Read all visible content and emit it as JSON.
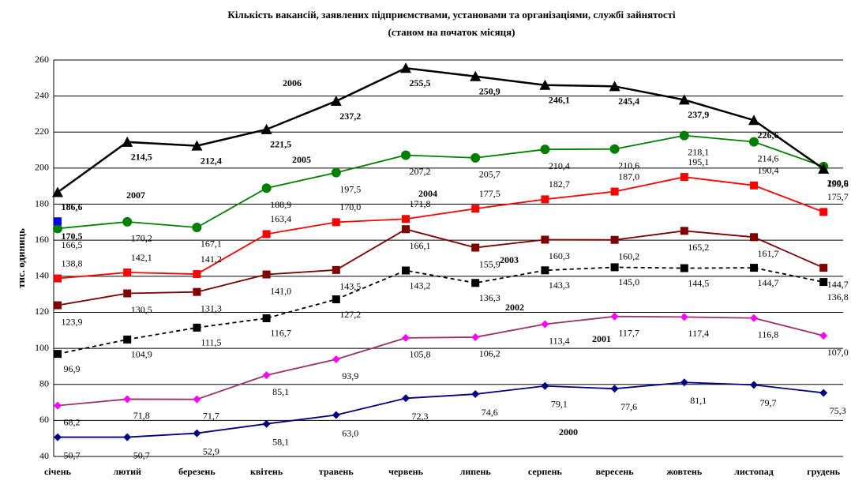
{
  "chart_data": {
    "type": "line",
    "title": "Кількість вакансій, заявлених підприємствами, установами та організаціями, службі зайнятості",
    "subtitle": "(станом на початок місяця)",
    "y_label": "тис. одиниць",
    "categories": [
      "січень",
      "лютий",
      "березень",
      "квітень",
      "травень",
      "червень",
      "липень",
      "серпень",
      "вересень",
      "жовтень",
      "листопад",
      "грудень"
    ],
    "ylim": [
      40,
      260
    ],
    "yticks": [
      40,
      60,
      80,
      100,
      120,
      140,
      160,
      180,
      200,
      220,
      240,
      260
    ],
    "grid": true,
    "series": [
      {
        "name": "2000",
        "color": "#000080",
        "marker": "diamond",
        "marker_color": "#000080",
        "dashed": false,
        "values": [
          50.7,
          50.7,
          52.9,
          58.1,
          63.0,
          72.3,
          74.6,
          79.1,
          77.6,
          81.1,
          79.7,
          75.3
        ],
        "value_labels": [
          "50,7",
          "50,7",
          "52,9",
          "58,1",
          "63,0",
          "72,3",
          "74,6",
          "79,1",
          "77,6",
          "81,1",
          "79,7",
          "75,3"
        ]
      },
      {
        "name": "2001",
        "color": "#993366",
        "marker": "diamond",
        "marker_color": "#ff00ff",
        "dashed": false,
        "values": [
          68.2,
          71.8,
          71.7,
          85.1,
          93.9,
          105.8,
          106.2,
          113.4,
          117.7,
          117.4,
          116.8,
          107.0
        ],
        "value_labels": [
          "68,2",
          "71,8",
          "71,7",
          "85,1",
          "93,9",
          "105,8",
          "106,2",
          "113,4",
          "117,7",
          "117,4",
          "116,8",
          "107,0"
        ]
      },
      {
        "name": "2002",
        "color": "#000000",
        "marker": "square",
        "marker_color": "#000000",
        "dashed": true,
        "values": [
          96.9,
          104.9,
          111.5,
          116.7,
          127.2,
          143.2,
          136.3,
          143.3,
          145.0,
          144.5,
          144.7,
          136.8
        ],
        "value_labels": [
          "96,9",
          "104,9",
          "111,5",
          "116,7",
          "127,2",
          "143,2",
          "136,3",
          "143,3",
          "145,0",
          "144,5",
          "144,7",
          "136,8"
        ]
      },
      {
        "name": "2003",
        "color": "#800000",
        "marker": "square",
        "marker_color": "#800000",
        "dashed": false,
        "values": [
          123.9,
          130.5,
          131.3,
          141.0,
          143.5,
          166.1,
          155.9,
          160.3,
          160.2,
          165.2,
          161.7,
          144.7
        ],
        "value_labels": [
          "123,9",
          "130,5",
          "131,3",
          "141,0",
          "143,5",
          "166,1",
          "155,9",
          "160,3",
          "160,2",
          "165,2",
          "161,7",
          "144,7"
        ]
      },
      {
        "name": "2004",
        "color": "#ff0000",
        "marker": "square",
        "marker_color": "#ff0000",
        "dashed": false,
        "values": [
          138.8,
          142.1,
          141.2,
          163.4,
          170.0,
          171.8,
          177.5,
          182.7,
          187.0,
          195.1,
          190.4,
          175.7
        ],
        "value_labels": [
          "138,8",
          "142,1",
          "141,2",
          "163,4",
          "170,0",
          "171,8",
          "177,5",
          "182,7",
          "187,0",
          "195,1",
          "190,4",
          "175,7"
        ]
      },
      {
        "name": "2005",
        "color": "#008000",
        "marker": "circle",
        "marker_color": "#008000",
        "dashed": false,
        "values": [
          166.5,
          170.2,
          167.1,
          188.9,
          197.5,
          207.2,
          205.7,
          210.4,
          210.6,
          218.1,
          214.6,
          200.9
        ],
        "value_labels": [
          "166,5",
          "170,2",
          "167,1",
          "188,9",
          "197,5",
          "207,2",
          "205,7",
          "210,4",
          "210,6",
          "218,1",
          "214,6",
          "200,9"
        ]
      },
      {
        "name": "2006",
        "color": "#000000",
        "marker": "triangle",
        "marker_color": "#000000",
        "dashed": false,
        "values": [
          186.6,
          214.5,
          212.4,
          221.5,
          237.2,
          255.5,
          250.9,
          246.1,
          245.4,
          237.9,
          226.6,
          199.6
        ],
        "value_labels": [
          "186,6",
          "214,5",
          "212,4",
          "221,5",
          "237,2",
          "255,5",
          "250,9",
          "246,1",
          "245,4",
          "237,9",
          "226,6",
          "199,6"
        ]
      },
      {
        "name": "2007",
        "color": "#0000ff",
        "marker": "square",
        "marker_color": "#0000ff",
        "dashed": false,
        "values": [
          170.5,
          null,
          null,
          null,
          null,
          null,
          null,
          null,
          null,
          null,
          null,
          null
        ],
        "value_labels": [
          "170,5",
          null,
          null,
          null,
          null,
          null,
          null,
          null,
          null,
          null,
          null,
          null
        ]
      }
    ]
  }
}
